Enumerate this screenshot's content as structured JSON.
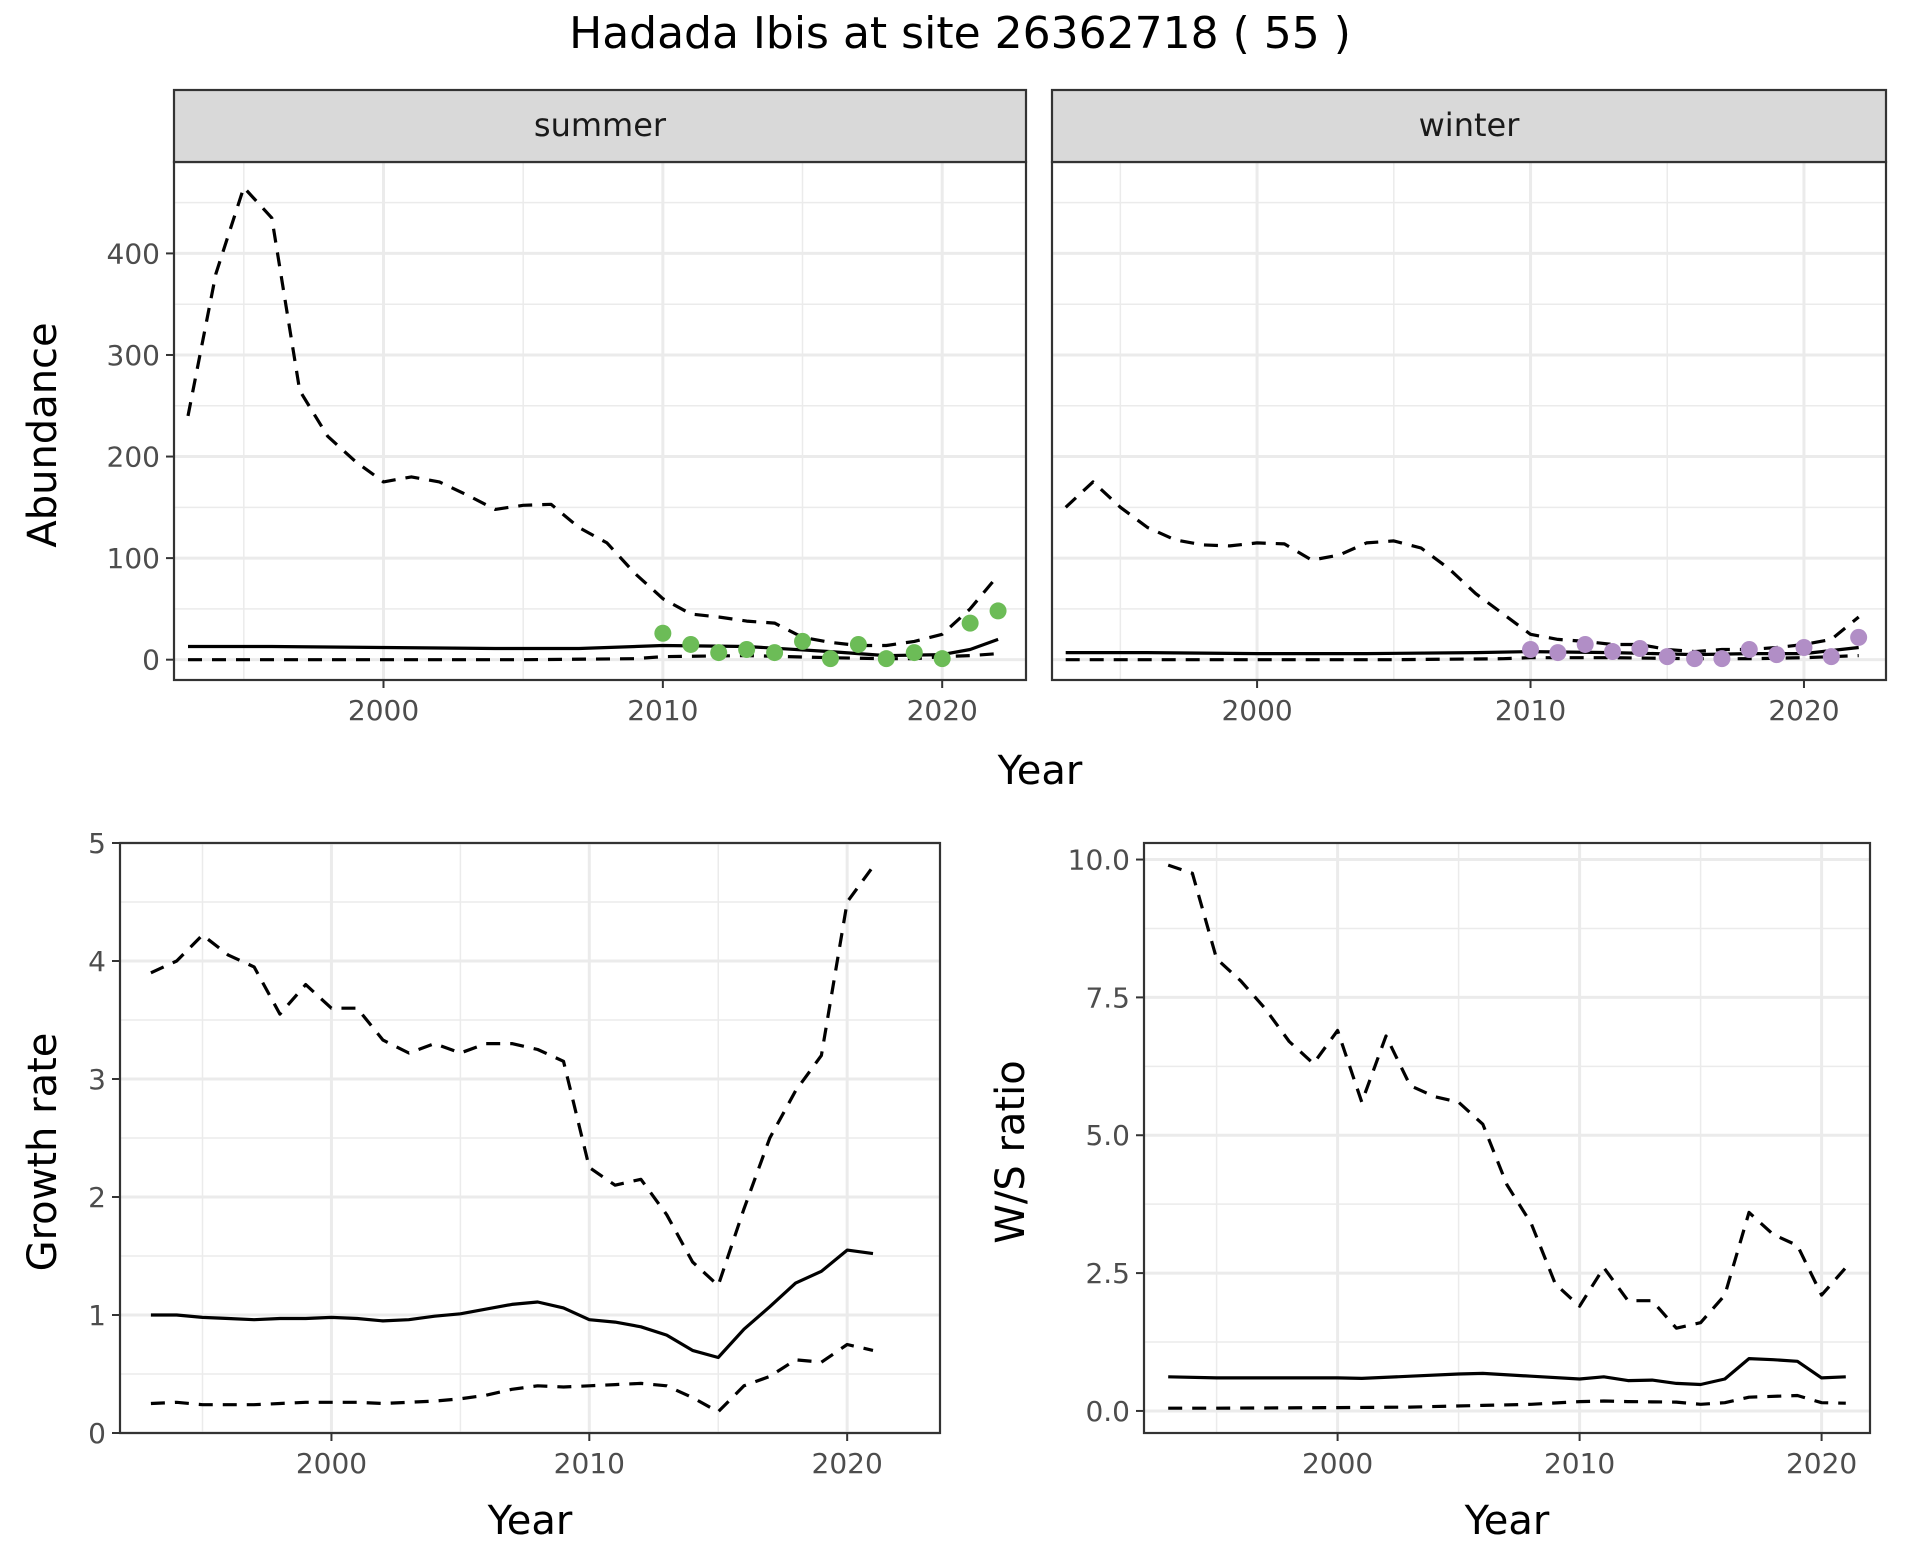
{
  "title": "Hadada Ibis at site 26362718 ( 55 )",
  "chart_data": [
    {
      "type": "line",
      "panel": "summer",
      "xlabel": "Year",
      "ylabel": "Abundance",
      "xlim": [
        1992.5,
        2023
      ],
      "ylim": [
        -20,
        490
      ],
      "xticks": [
        2000,
        2010,
        2020
      ],
      "yticks": [
        0,
        100,
        200,
        300,
        400
      ],
      "grid": true,
      "series": [
        {
          "role": "upper",
          "style": "dashed",
          "x": [
            1993,
            1994,
            1995,
            1996,
            1997,
            1998,
            1999,
            2000,
            2001,
            2002,
            2003,
            2004,
            2005,
            2006,
            2007,
            2008,
            2009,
            2010,
            2011,
            2012,
            2013,
            2014,
            2015,
            2016,
            2017,
            2018,
            2019,
            2020,
            2021,
            2022
          ],
          "y": [
            240,
            380,
            465,
            435,
            265,
            220,
            195,
            175,
            180,
            175,
            162,
            148,
            152,
            153,
            130,
            115,
            85,
            60,
            45,
            42,
            38,
            36,
            22,
            17,
            14,
            14,
            18,
            25,
            50,
            83
          ]
        },
        {
          "role": "mean",
          "style": "solid",
          "x": [
            1993,
            1996,
            2000,
            2004,
            2007,
            2010,
            2013,
            2016,
            2018,
            2020,
            2021,
            2022
          ],
          "y": [
            13,
            13,
            12,
            11,
            11,
            14,
            13,
            8,
            4,
            5,
            10,
            20
          ]
        },
        {
          "role": "lower",
          "style": "dashed",
          "x": [
            1993,
            1996,
            2000,
            2005,
            2009,
            2010,
            2013,
            2016,
            2018,
            2019,
            2020,
            2021,
            2022
          ],
          "y": [
            0,
            0,
            0,
            0,
            1,
            3,
            4,
            2,
            1,
            1,
            3,
            4,
            6
          ]
        },
        {
          "role": "observed",
          "style": "points",
          "color": "#6cbc57",
          "x": [
            2010,
            2011,
            2012,
            2013,
            2014,
            2015,
            2016,
            2017,
            2018,
            2019,
            2020,
            2021,
            2022
          ],
          "y": [
            26,
            15,
            7,
            10,
            7,
            18,
            1,
            15,
            1,
            7,
            1,
            36,
            48
          ]
        }
      ]
    },
    {
      "type": "line",
      "panel": "winter",
      "xlabel": "Year",
      "ylabel": "Abundance",
      "xlim": [
        1992.5,
        2023
      ],
      "ylim": [
        -20,
        490
      ],
      "xticks": [
        2000,
        2010,
        2020
      ],
      "yticks": [
        0,
        100,
        200,
        300,
        400
      ],
      "grid": true,
      "series": [
        {
          "role": "upper",
          "style": "dashed",
          "x": [
            1993,
            1994,
            1995,
            1996,
            1997,
            1998,
            1999,
            2000,
            2001,
            2002,
            2003,
            2004,
            2005,
            2006,
            2007,
            2008,
            2009,
            2010,
            2011,
            2012,
            2013,
            2014,
            2015,
            2016,
            2017,
            2018,
            2019,
            2020,
            2021,
            2022
          ],
          "y": [
            150,
            175,
            150,
            130,
            118,
            113,
            112,
            115,
            114,
            98,
            103,
            115,
            117,
            110,
            90,
            65,
            45,
            25,
            20,
            18,
            15,
            15,
            10,
            8,
            10,
            10,
            12,
            15,
            20,
            42
          ]
        },
        {
          "role": "mean",
          "style": "solid",
          "x": [
            1993,
            1996,
            2000,
            2004,
            2008,
            2010,
            2013,
            2016,
            2018,
            2020,
            2022
          ],
          "y": [
            7,
            7,
            6,
            6,
            7,
            8,
            7,
            5,
            6,
            6,
            12
          ]
        },
        {
          "role": "lower",
          "style": "dashed",
          "x": [
            1993,
            1996,
            2000,
            2005,
            2009,
            2010,
            2013,
            2016,
            2018,
            2020,
            2022
          ],
          "y": [
            0,
            0,
            0,
            0,
            1,
            2,
            2,
            1,
            1,
            2,
            4
          ]
        },
        {
          "role": "observed",
          "style": "points",
          "color": "#b18ec6",
          "x": [
            2010,
            2011,
            2012,
            2013,
            2014,
            2015,
            2016,
            2017,
            2018,
            2019,
            2020,
            2021,
            2022
          ],
          "y": [
            10,
            7,
            15,
            8,
            11,
            3,
            1,
            1,
            10,
            5,
            12,
            3,
            22
          ]
        }
      ]
    },
    {
      "type": "line",
      "panel": "growth",
      "xlabel": "Year",
      "ylabel": "Growth rate",
      "xlim": [
        1991.8,
        2023.6
      ],
      "ylim": [
        0,
        5
      ],
      "xticks": [
        2000,
        2010,
        2020
      ],
      "yticks": [
        0,
        1,
        2,
        3,
        4,
        5
      ],
      "grid": true,
      "series": [
        {
          "role": "upper",
          "style": "dashed",
          "x": [
            1993,
            1994,
            1995,
            1996,
            1997,
            1998,
            1999,
            2000,
            2001,
            2002,
            2003,
            2004,
            2005,
            2006,
            2007,
            2008,
            2009,
            2010,
            2011,
            2012,
            2013,
            2014,
            2015,
            2016,
            2017,
            2018,
            2019,
            2020,
            2021
          ],
          "y": [
            3.9,
            4.0,
            4.22,
            4.05,
            3.95,
            3.55,
            3.8,
            3.6,
            3.6,
            3.33,
            3.22,
            3.3,
            3.22,
            3.3,
            3.3,
            3.25,
            3.15,
            2.25,
            2.1,
            2.15,
            1.85,
            1.45,
            1.25,
            1.9,
            2.5,
            2.9,
            3.2,
            4.5,
            4.8
          ]
        },
        {
          "role": "mean",
          "style": "solid",
          "x": [
            1993,
            1994,
            1995,
            1996,
            1997,
            1998,
            1999,
            2000,
            2001,
            2002,
            2003,
            2004,
            2005,
            2006,
            2007,
            2008,
            2009,
            2010,
            2011,
            2012,
            2013,
            2014,
            2015,
            2016,
            2017,
            2018,
            2019,
            2020,
            2021
          ],
          "y": [
            1.0,
            1.0,
            0.98,
            0.97,
            0.96,
            0.97,
            0.97,
            0.98,
            0.97,
            0.95,
            0.96,
            0.99,
            1.01,
            1.05,
            1.09,
            1.11,
            1.06,
            0.96,
            0.94,
            0.9,
            0.83,
            0.7,
            0.64,
            0.88,
            1.07,
            1.27,
            1.37,
            1.55,
            1.52
          ]
        },
        {
          "role": "lower",
          "style": "dashed",
          "x": [
            1993,
            1994,
            1995,
            1996,
            1997,
            1998,
            1999,
            2000,
            2001,
            2002,
            2003,
            2004,
            2005,
            2006,
            2007,
            2008,
            2009,
            2010,
            2011,
            2012,
            2013,
            2014,
            2015,
            2016,
            2017,
            2018,
            2019,
            2020,
            2021
          ],
          "y": [
            0.25,
            0.26,
            0.24,
            0.24,
            0.24,
            0.25,
            0.26,
            0.26,
            0.26,
            0.25,
            0.26,
            0.27,
            0.29,
            0.32,
            0.37,
            0.4,
            0.39,
            0.4,
            0.41,
            0.42,
            0.4,
            0.3,
            0.18,
            0.4,
            0.48,
            0.62,
            0.6,
            0.75,
            0.7
          ]
        }
      ]
    },
    {
      "type": "line",
      "panel": "ratio",
      "xlabel": "Year",
      "ylabel": "W/S ratio",
      "xlim": [
        1992,
        2022
      ],
      "ylim": [
        -0.4,
        10.3
      ],
      "xticks": [
        2000,
        2010,
        2020
      ],
      "yticks": [
        0,
        2.5,
        5,
        7.5,
        10
      ],
      "ytick_labels": [
        "0.0",
        "2.5",
        "5.0",
        "7.5",
        "10.0"
      ],
      "grid": true,
      "series": [
        {
          "role": "upper",
          "style": "dashed",
          "x": [
            1993,
            1994,
            1995,
            1996,
            1997,
            1998,
            1999,
            2000,
            2001,
            2002,
            2003,
            2004,
            2005,
            2006,
            2007,
            2008,
            2009,
            2010,
            2011,
            2012,
            2013,
            2014,
            2015,
            2016,
            2017,
            2018,
            2019,
            2020,
            2021
          ],
          "y": [
            9.9,
            9.75,
            8.2,
            7.8,
            7.3,
            6.7,
            6.3,
            6.9,
            5.6,
            6.8,
            5.9,
            5.7,
            5.6,
            5.2,
            4.1,
            3.4,
            2.3,
            1.9,
            2.6,
            2.0,
            2.0,
            1.5,
            1.6,
            2.1,
            3.6,
            3.2,
            3.0,
            2.1,
            2.6
          ]
        },
        {
          "role": "mean",
          "style": "solid",
          "x": [
            1993,
            1995,
            1998,
            2000,
            2001,
            2003,
            2005,
            2006,
            2008,
            2010,
            2011,
            2012,
            2013,
            2014,
            2015,
            2016,
            2017,
            2018,
            2019,
            2020,
            2021
          ],
          "y": [
            0.62,
            0.6,
            0.6,
            0.6,
            0.59,
            0.63,
            0.67,
            0.68,
            0.63,
            0.58,
            0.62,
            0.55,
            0.56,
            0.5,
            0.48,
            0.58,
            0.95,
            0.93,
            0.9,
            0.6,
            0.62
          ]
        },
        {
          "role": "lower",
          "style": "dashed",
          "x": [
            1993,
            1995,
            2000,
            2003,
            2006,
            2008,
            2010,
            2011,
            2012,
            2014,
            2015,
            2016,
            2017,
            2019,
            2020,
            2021
          ],
          "y": [
            0.05,
            0.05,
            0.06,
            0.07,
            0.1,
            0.12,
            0.17,
            0.18,
            0.17,
            0.16,
            0.12,
            0.15,
            0.25,
            0.28,
            0.15,
            0.14
          ]
        }
      ]
    }
  ]
}
